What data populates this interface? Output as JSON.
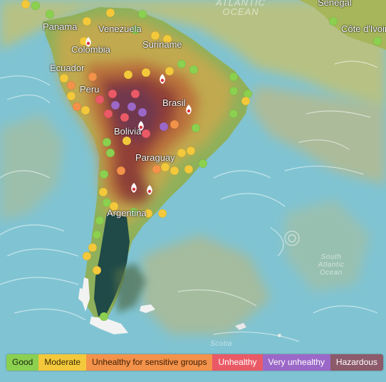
{
  "map": {
    "country_labels": [
      {
        "name": "Panama"
      },
      {
        "name": "Venezuela"
      },
      {
        "name": "Colombia"
      },
      {
        "name": "Suriname"
      },
      {
        "name": "Ecuador"
      },
      {
        "name": "Peru"
      },
      {
        "name": "Brasil"
      },
      {
        "name": "Bolivia"
      },
      {
        "name": "Paraguay"
      },
      {
        "name": "Argentina"
      },
      {
        "name": "Senegal"
      },
      {
        "name": "Côte d'Ivoire"
      }
    ],
    "ocean_labels": [
      {
        "name": "ATLANTIC OCEAN"
      },
      {
        "name": "South Atlantic Ocean"
      },
      {
        "name": "Scotia"
      }
    ],
    "colors": {
      "ocean": "#7fc6d6",
      "good": "#8bd04f",
      "moderate": "#f3c93b",
      "usg": "#f3924a",
      "unhealthy": "#ea5a66",
      "very_unhealthy": "#9c68c8",
      "hazardous": "#8c5a6a"
    },
    "station_markers": [
      {
        "aqi_level": "good"
      },
      {
        "aqi_level": "moderate"
      },
      {
        "aqi_level": "usg"
      },
      {
        "aqi_level": "unhealthy"
      },
      {
        "aqi_level": "very_unhealthy"
      }
    ],
    "fire_markers": [
      "fire-icon",
      "fire-icon",
      "fire-icon",
      "fire-icon",
      "fire-icon",
      "fire-icon"
    ]
  },
  "legend": {
    "items": [
      {
        "label": "Good",
        "color": "#8bd04f",
        "text_color": "#1d2a10"
      },
      {
        "label": "Moderate",
        "color": "#f3c93b",
        "text_color": "#3a2d05"
      },
      {
        "label": "Unhealthy for sensitive groups",
        "color": "#f3924a",
        "text_color": "#3d1d05"
      },
      {
        "label": "Unhealthy",
        "color": "#ea5a66",
        "text_color": "#ffffff"
      },
      {
        "label": "Very unhealthy",
        "color": "#9c68c8",
        "text_color": "#ffffff"
      },
      {
        "label": "Hazardous",
        "color": "#8c5a6a",
        "text_color": "#ffffff"
      }
    ]
  }
}
